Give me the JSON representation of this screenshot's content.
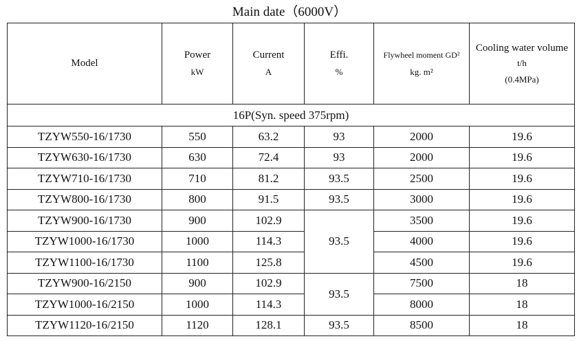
{
  "title": "Main date（6000V）",
  "header": {
    "model": "Model",
    "power": [
      "Power",
      "kW"
    ],
    "current": [
      "Current",
      "A"
    ],
    "effi": [
      "Effi.",
      "%"
    ],
    "flywheel": [
      "Flywheel moment GD²",
      "kg. m²"
    ],
    "cooling": [
      "Cooling water volume",
      "t/h",
      "(0.4MPa)"
    ]
  },
  "section": "16P(Syn. speed 375rpm)",
  "rows": [
    {
      "model": "TZYW550-16/1730",
      "power": "550",
      "current": "63.2",
      "effi": "93",
      "flywheel": "2000",
      "cooling": "19.6"
    },
    {
      "model": "TZYW630-16/1730",
      "power": "630",
      "current": "72.4",
      "effi": "93",
      "flywheel": "2000",
      "cooling": "19.6"
    },
    {
      "model": "TZYW710-16/1730",
      "power": "710",
      "current": "81.2",
      "effi": "93.5",
      "flywheel": "2500",
      "cooling": "19.6"
    },
    {
      "model": "TZYW800-16/1730",
      "power": "800",
      "current": "91.5",
      "effi": "93.5",
      "flywheel": "3000",
      "cooling": "19.6"
    },
    {
      "model": "TZYW900-16/1730",
      "power": "900",
      "current": "102.9",
      "effi": "93.5",
      "flywheel": "3500",
      "cooling": "19.6"
    },
    {
      "model": "TZYW1000-16/1730",
      "power": "1000",
      "current": "114.3",
      "flywheel": "4000",
      "cooling": "19.6"
    },
    {
      "model": "TZYW1100-16/1730",
      "power": "1100",
      "current": "125.8",
      "flywheel": "4500",
      "cooling": "19.6"
    },
    {
      "model": "TZYW900-16/2150",
      "power": "900",
      "current": "102.9",
      "effi": "93.5",
      "flywheel": "7500",
      "cooling": "18"
    },
    {
      "model": "TZYW1000-16/2150",
      "power": "1000",
      "current": "114.3",
      "flywheel": "8000",
      "cooling": "18"
    },
    {
      "model": "TZYW1120-16/2150",
      "power": "1120",
      "current": "128.1",
      "effi": "93.5",
      "flywheel": "8500",
      "cooling": "18"
    }
  ]
}
